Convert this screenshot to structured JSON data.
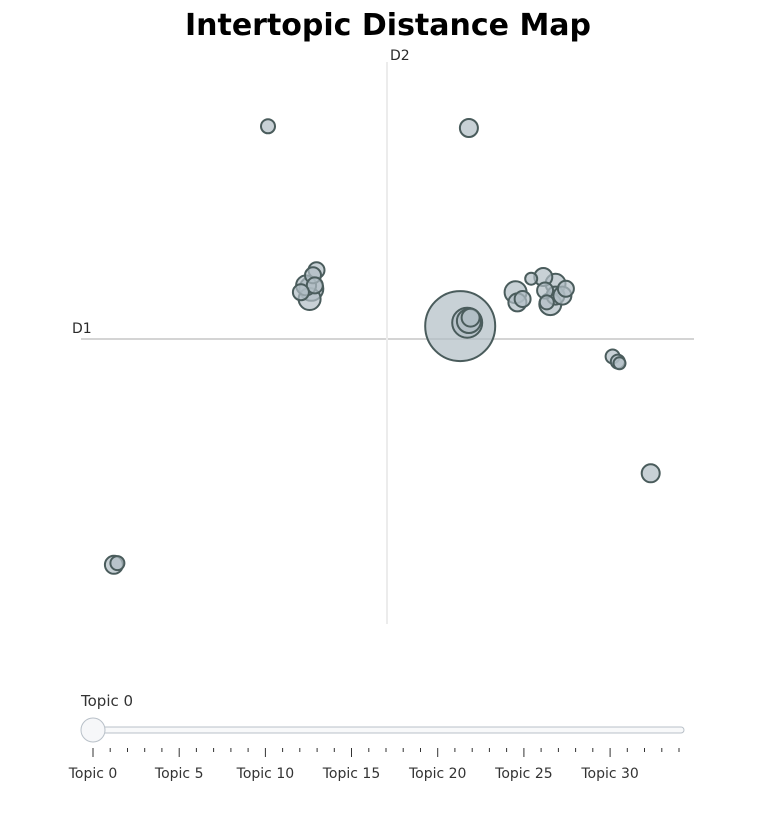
{
  "chart_data": {
    "type": "scatter",
    "title": "Intertopic Distance Map",
    "xlabel": "D1",
    "ylabel": "D2",
    "xlim": [
      -17.7,
      17.7
    ],
    "ylim": [
      -16.6,
      16.6
    ],
    "grid": false,
    "points": [
      {
        "x": 4.2,
        "y": 1.0,
        "size": 35
      },
      {
        "x": 4.8,
        "y": 1.5,
        "size": 9
      },
      {
        "x": 4.7,
        "y": 1.3,
        "size": 12
      },
      {
        "x": 4.6,
        "y": 1.2,
        "size": 15
      },
      {
        "x": -6.9,
        "y": 12.8,
        "size": 7
      },
      {
        "x": 4.7,
        "y": 12.7,
        "size": 9
      },
      {
        "x": -4.1,
        "y": 4.3,
        "size": 8
      },
      {
        "x": -4.3,
        "y": 4.0,
        "size": 8
      },
      {
        "x": -4.7,
        "y": 3.4,
        "size": 10
      },
      {
        "x": -4.4,
        "y": 3.2,
        "size": 12
      },
      {
        "x": -4.2,
        "y": 3.4,
        "size": 8
      },
      {
        "x": -5.0,
        "y": 3.0,
        "size": 8
      },
      {
        "x": -4.5,
        "y": 2.6,
        "size": 11
      },
      {
        "x": 7.4,
        "y": 3.0,
        "size": 11
      },
      {
        "x": 7.5,
        "y": 2.4,
        "size": 9
      },
      {
        "x": 7.8,
        "y": 2.6,
        "size": 8
      },
      {
        "x": 8.3,
        "y": 3.8,
        "size": 6
      },
      {
        "x": 9.0,
        "y": 3.9,
        "size": 9
      },
      {
        "x": 9.7,
        "y": 3.5,
        "size": 10
      },
      {
        "x": 10.3,
        "y": 3.2,
        "size": 8
      },
      {
        "x": 9.1,
        "y": 3.1,
        "size": 8
      },
      {
        "x": 9.7,
        "y": 2.8,
        "size": 9
      },
      {
        "x": 10.1,
        "y": 2.8,
        "size": 9
      },
      {
        "x": 9.4,
        "y": 2.3,
        "size": 11
      },
      {
        "x": 9.2,
        "y": 2.4,
        "size": 7
      },
      {
        "x": 13.0,
        "y": -0.8,
        "size": 7
      },
      {
        "x": 13.3,
        "y": -1.1,
        "size": 7
      },
      {
        "x": 13.4,
        "y": -1.2,
        "size": 6
      },
      {
        "x": 15.2,
        "y": -7.7,
        "size": 9
      },
      {
        "x": -15.8,
        "y": -13.1,
        "size": 9
      },
      {
        "x": -15.6,
        "y": -13.0,
        "size": 7
      }
    ]
  },
  "slider": {
    "current_label": "Topic 0",
    "value": 0,
    "min": 0,
    "max": 34,
    "tick_labels": [
      "Topic 0",
      "Topic 5",
      "Topic 10",
      "Topic 15",
      "Topic 20",
      "Topic 25",
      "Topic 30"
    ]
  }
}
